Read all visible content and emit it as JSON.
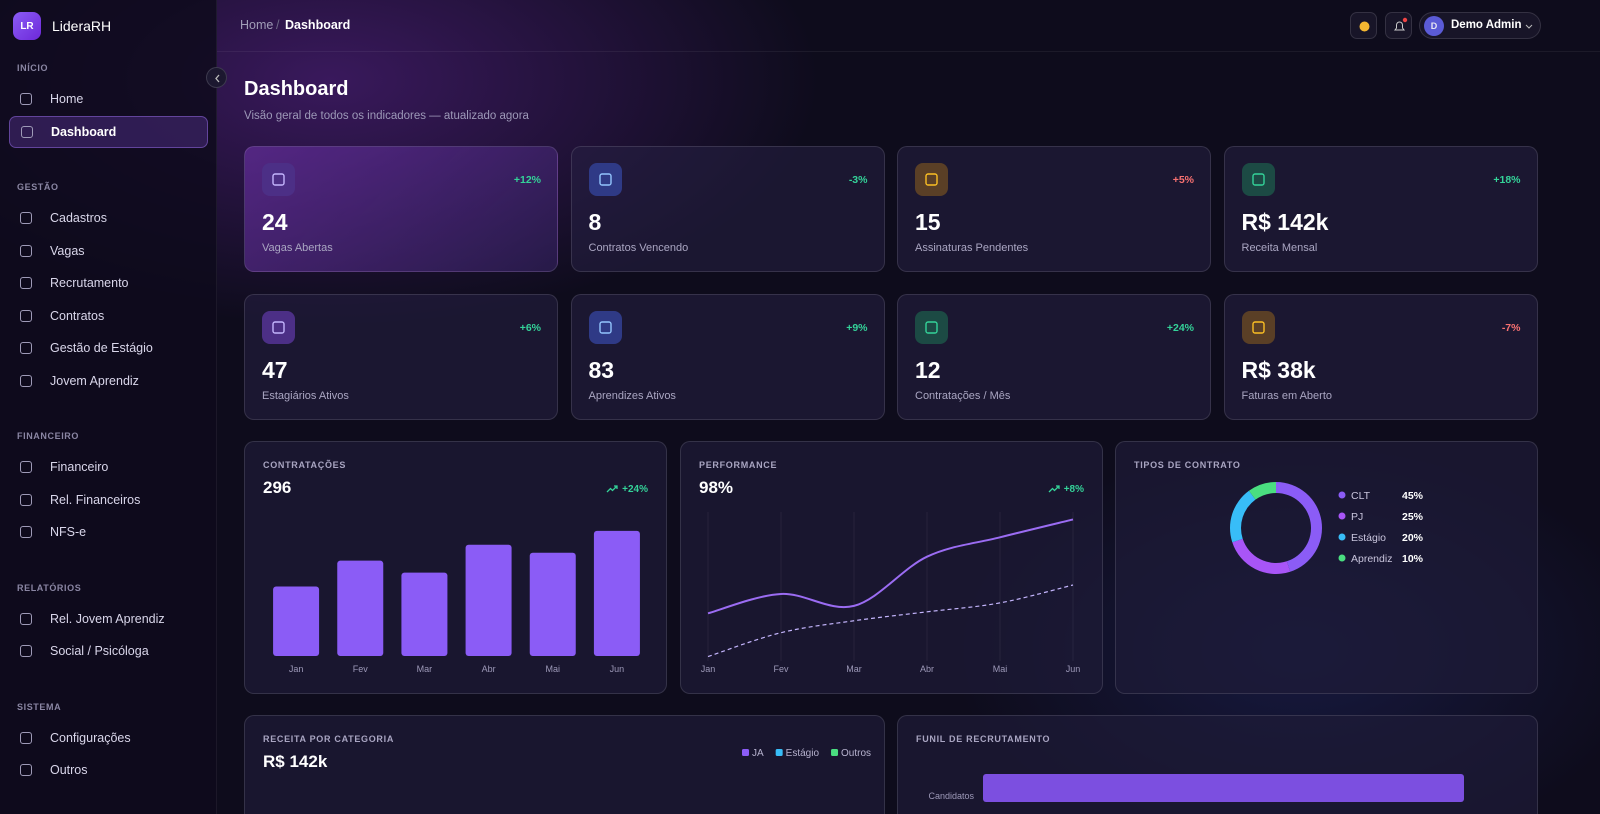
{
  "brand": {
    "initials": "LR",
    "name": "LideraRH"
  },
  "header": {
    "breadcrumb": [
      "Home",
      "Dashboard"
    ],
    "separator": "/",
    "user_initial": "D",
    "user_name": "Demo Admin"
  },
  "sidebar": [
    {
      "title": "INÍCIO",
      "items": [
        "Home",
        "Dashboard"
      ],
      "active": 1
    },
    {
      "title": "GESTÃO",
      "items": [
        "Cadastros",
        "Vagas",
        "Recrutamento",
        "Contratos",
        "Gestão de Estágio",
        "Jovem Aprendiz"
      ]
    },
    {
      "title": "FINANCEIRO",
      "items": [
        "Financeiro",
        "Rel. Financeiros",
        "NFS-e"
      ]
    },
    {
      "title": "RELATÓRIOS",
      "items": [
        "Rel. Jovem Aprendiz",
        "Social / Psicóloga"
      ]
    },
    {
      "title": "SISTEMA",
      "items": [
        "Configurações",
        "Outros"
      ]
    }
  ],
  "page": {
    "title": "Dashboard",
    "subtitle": "Visão geral de todos os indicadores — atualizado agora"
  },
  "kpis": [
    {
      "trend": "+12%",
      "trend_color": "#34d399",
      "value": "24",
      "label": "Vagas Abertas",
      "icon_bg": "#4c2f86",
      "icon_color": "#c4b5fd"
    },
    {
      "trend": "-3%",
      "trend_color": "#34d399",
      "value": "8",
      "label": "Contratos Vencendo",
      "icon_bg": "#2f3a86",
      "icon_color": "#93c5fd"
    },
    {
      "trend": "+5%",
      "trend_color": "#f87171",
      "value": "15",
      "label": "Assinaturas Pendentes",
      "icon_bg": "#5a3f26",
      "icon_color": "#fbbf24"
    },
    {
      "trend": "+18%",
      "trend_color": "#34d399",
      "value": "R$ 142k",
      "label": "Receita Mensal",
      "icon_bg": "#1c4a44",
      "icon_color": "#34d399"
    },
    {
      "trend": "+6%",
      "trend_color": "#34d399",
      "value": "47",
      "label": "Estagiários Ativos",
      "icon_bg": "#4c2f86",
      "icon_color": "#c4b5fd"
    },
    {
      "trend": "+9%",
      "trend_color": "#34d399",
      "value": "83",
      "label": "Aprendizes Ativos",
      "icon_bg": "#2f3a86",
      "icon_color": "#93c5fd"
    },
    {
      "trend": "+24%",
      "trend_color": "#34d399",
      "value": "12",
      "label": "Contratações / Mês",
      "icon_bg": "#1c4a44",
      "icon_color": "#34d399"
    },
    {
      "trend": "-7%",
      "trend_color": "#f87171",
      "value": "R$ 38k",
      "label": "Faturas em Aberto",
      "icon_bg": "#5a3f26",
      "icon_color": "#fbbf24"
    }
  ],
  "chart_data": [
    {
      "type": "bar",
      "title": "CONTRATAÇÕES",
      "total": "296",
      "trend": "+24%",
      "categories": [
        "Jan",
        "Fev",
        "Mar",
        "Abr",
        "Mai",
        "Jun"
      ],
      "values": [
        35,
        48,
        42,
        56,
        52,
        63
      ],
      "color": "#8b5cf6",
      "ylim": [
        0,
        70
      ]
    },
    {
      "type": "line",
      "title": "PERFORMANCE",
      "total": "98%",
      "trend": "+8%",
      "categories": [
        "Jan",
        "Fev",
        "Mar",
        "Abr",
        "Mai",
        "Jun"
      ],
      "series": [
        {
          "color": "#9b6cf3",
          "dashed": false,
          "values": [
            32,
            45,
            37,
            70,
            83,
            95
          ]
        },
        {
          "color": "#c4b5fd",
          "dashed": true,
          "values": [
            3,
            19,
            27,
            33,
            39,
            51
          ]
        }
      ],
      "ylim": [
        0,
        100
      ],
      "grid": true
    },
    {
      "type": "pie",
      "title": "TIPOS DE CONTRATO",
      "donut": true,
      "categories": [
        "CLT",
        "PJ",
        "Estágio",
        "Aprendiz"
      ],
      "values": [
        45,
        25,
        20,
        10
      ],
      "value_labels": [
        "45%",
        "25%",
        "20%",
        "10%"
      ],
      "colors": [
        "#8b5cf6",
        "#a855f7",
        "#38bdf8",
        "#4ade80"
      ]
    },
    {
      "type": "bar",
      "title": "RECEITA POR CATEGORIA",
      "total": "R$ 142k",
      "series": [
        {
          "name": "JA",
          "color": "#8b5cf6"
        },
        {
          "name": "Estágio",
          "color": "#38bdf8"
        },
        {
          "name": "Outros",
          "color": "#4ade80"
        }
      ]
    },
    {
      "type": "hbar",
      "title": "FUNIL DE RECRUTAMENTO",
      "categories": [
        "Candidatos"
      ],
      "values": [
        100
      ],
      "color": "#7c4fe0",
      "xlim": [
        0,
        100
      ]
    }
  ]
}
